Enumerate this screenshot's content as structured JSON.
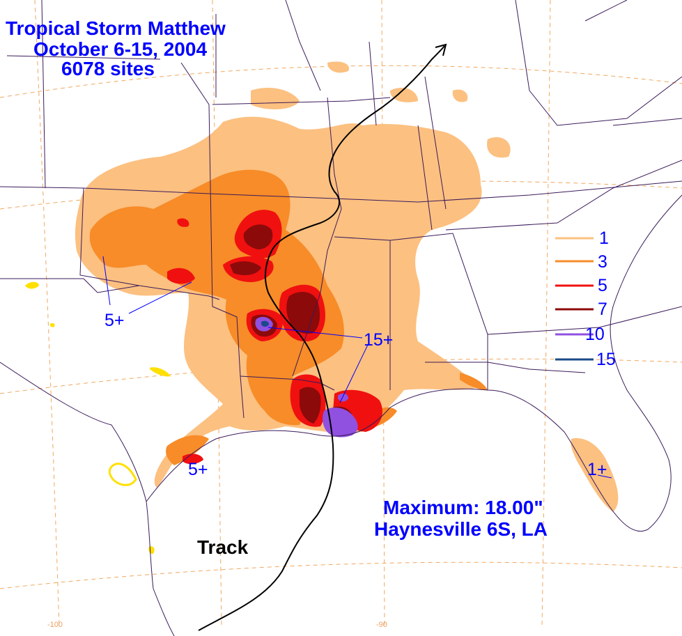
{
  "title": {
    "line1": "Tropical Storm Matthew",
    "line2": "October 6-15, 2004",
    "line3": "6078 sites"
  },
  "legend": {
    "items": [
      {
        "label": "1",
        "color": "#fcc080"
      },
      {
        "label": "3",
        "color": "#f78c28"
      },
      {
        "label": "5",
        "color": "#f01010"
      },
      {
        "label": "7",
        "color": "#8c0a0a"
      },
      {
        "label": "10",
        "color": "#9050e0"
      },
      {
        "label": "15",
        "color": "#1a4a8a"
      }
    ]
  },
  "annotations": {
    "west_max": "5+",
    "center_max": "15+",
    "texas_max": "5+",
    "florida_max": "1+"
  },
  "maximum": {
    "line1": "Maximum: 18.00\"",
    "line2": "Haynesville 6S, LA"
  },
  "track_label": "Track",
  "longitude_labels": {
    "left": "-100",
    "right": "-90"
  },
  "colors": {
    "c1": "#fcc080",
    "c3": "#f78c28",
    "c5": "#f01010",
    "c7": "#8c0a0a",
    "c10": "#9050e0",
    "c15": "#1a4a8a",
    "text": "#0000ff",
    "grid": "#f0a860",
    "borders": "#3a1a5a"
  }
}
